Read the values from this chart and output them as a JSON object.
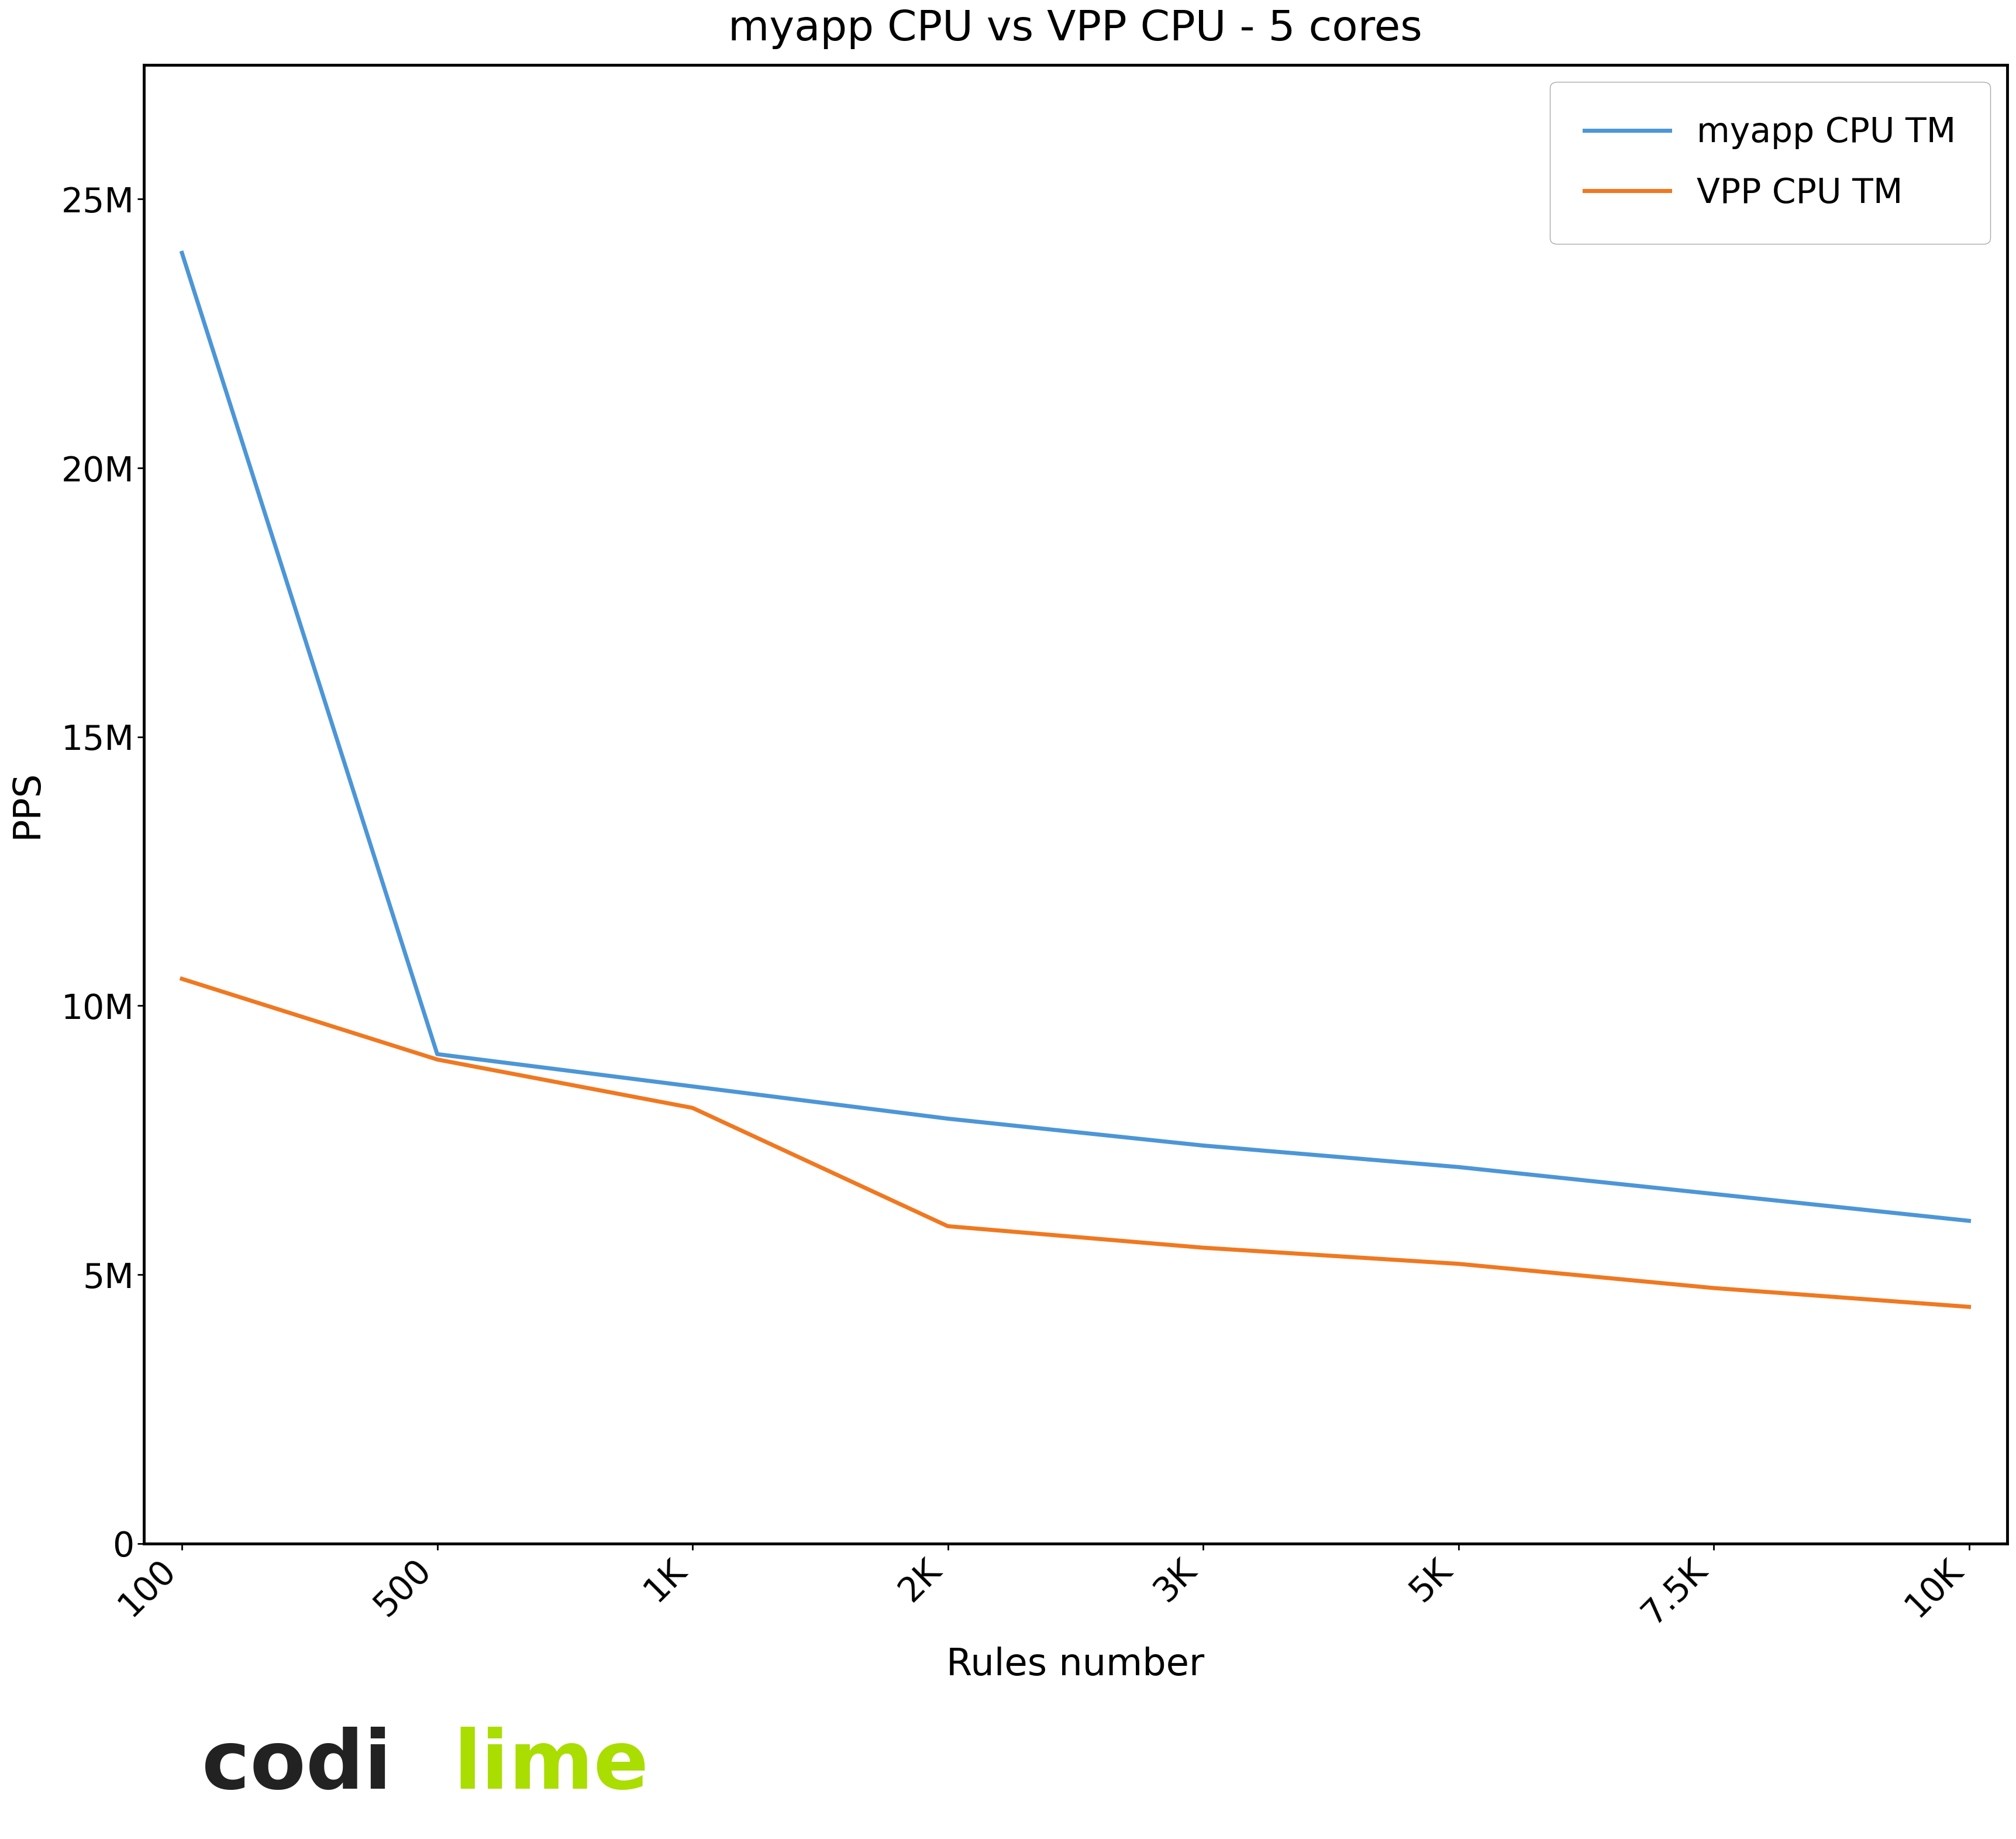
{
  "title": "myapp CPU vs VPP CPU - 5 cores",
  "xlabel": "Rules number",
  "ylabel": "PPS",
  "x_positions": [
    0,
    1,
    2,
    3,
    4,
    5,
    6,
    7
  ],
  "x_tick_labels": [
    "100",
    "500",
    "1K",
    "2K",
    "3K",
    "5K",
    "7.5K",
    "10K"
  ],
  "myapp_y": [
    24000000,
    9100000,
    8500000,
    7900000,
    7400000,
    7000000,
    6500000,
    6000000
  ],
  "vpp_y": [
    10500000,
    9000000,
    8100000,
    5900000,
    5500000,
    5200000,
    4750000,
    4400000
  ],
  "myapp_color": "#4c96d7",
  "vpp_color": "#f07820",
  "myapp_label": "myapp CPU TM",
  "vpp_label": "VPP CPU TM",
  "ylim": [
    0,
    27500000
  ],
  "ytick_values": [
    0,
    5000000,
    10000000,
    15000000,
    20000000,
    25000000
  ],
  "ytick_labels": [
    "0",
    "5M",
    "10M",
    "15M",
    "20M",
    "25M"
  ],
  "title_fontsize": 52,
  "axis_label_fontsize": 46,
  "tick_fontsize": 42,
  "legend_fontsize": 42,
  "line_width": 5.0,
  "codi_black": "#222222",
  "codi_green": "#aadd00",
  "logo_text_codi": "codi",
  "logo_text_lime": "lime",
  "logo_fontsize": 100,
  "spine_linewidth": 3.5
}
